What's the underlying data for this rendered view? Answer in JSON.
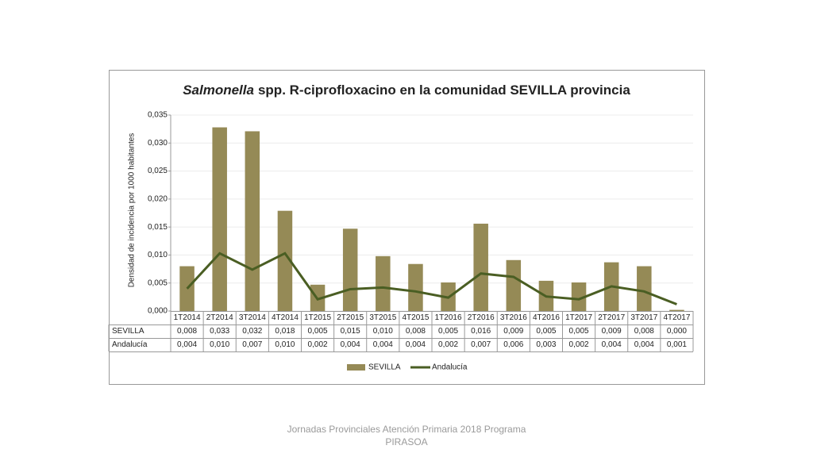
{
  "chart_data": {
    "type": "bar-line-table",
    "title": {
      "italic": "Salmonella",
      "rest": "spp. R-ciprofloxacino en la comunidad SEVILLA provincia"
    },
    "y_label": "Densidad de incidencia por 1000 habitantes",
    "categories": [
      "1T2014",
      "2T2014",
      "3T2014",
      "4T2014",
      "1T2015",
      "2T2015",
      "3T2015",
      "4T2015",
      "1T2016",
      "2T2016",
      "3T2016",
      "4T2016",
      "1T2017",
      "2T2017",
      "3T2017",
      "4T2017"
    ],
    "series": [
      {
        "name": "SEVILLA",
        "type": "bar",
        "color": "#958a56",
        "values": [
          0.008,
          0.0328,
          0.0321,
          0.0179,
          0.0047,
          0.0147,
          0.0098,
          0.0084,
          0.0051,
          0.0156,
          0.0091,
          0.0054,
          0.0051,
          0.0087,
          0.008,
          0.0002
        ],
        "value_labels": [
          "0,008",
          "0,033",
          "0,032",
          "0,018",
          "0,005",
          "0,015",
          "0,010",
          "0,008",
          "0,005",
          "0,016",
          "0,009",
          "0,005",
          "0,005",
          "0,009",
          "0,008",
          "0,000"
        ]
      },
      {
        "name": "Andalucía",
        "type": "line",
        "color": "#4a5e23",
        "values": [
          0.004,
          0.0103,
          0.0074,
          0.0103,
          0.0021,
          0.0039,
          0.0042,
          0.0035,
          0.0024,
          0.0067,
          0.0061,
          0.0026,
          0.0021,
          0.0044,
          0.0035,
          0.0012
        ],
        "value_labels": [
          "0,004",
          "0,010",
          "0,007",
          "0,010",
          "0,002",
          "0,004",
          "0,004",
          "0,004",
          "0,002",
          "0,007",
          "0,006",
          "0,003",
          "0,002",
          "0,004",
          "0,004",
          "0,001"
        ]
      }
    ],
    "ylim": [
      0,
      0.035
    ],
    "yticks": [
      {
        "value": 0,
        "label": "0,000"
      },
      {
        "value": 0.005,
        "label": "0,005"
      },
      {
        "value": 0.01,
        "label": "0,010"
      },
      {
        "value": 0.015,
        "label": "0,015"
      },
      {
        "value": 0.02,
        "label": "0,020"
      },
      {
        "value": 0.025,
        "label": "0,025"
      },
      {
        "value": 0.03,
        "label": "0,030"
      },
      {
        "value": 0.035,
        "label": "0,035"
      }
    ],
    "grid": true,
    "legend": "bottom"
  },
  "footer": "Jornadas Provinciales Atención Primaria 2018  Programa PIRASOA"
}
